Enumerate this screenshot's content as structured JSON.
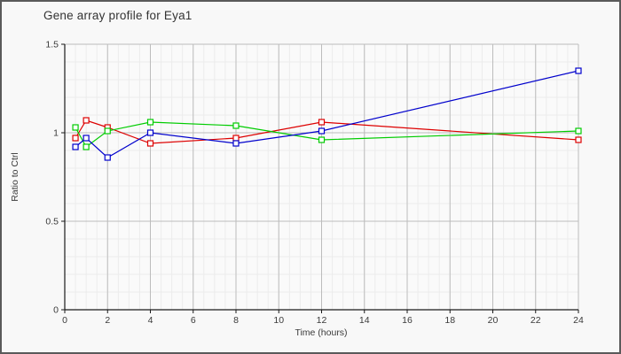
{
  "chart_data": {
    "type": "line",
    "title": "Gene array profile for Eya1",
    "xlabel": "Time (hours)",
    "ylabel": "Ratio to Ctrl",
    "xlim": [
      0,
      24
    ],
    "ylim": [
      0,
      1.5
    ],
    "x_major_ticks": [
      0,
      2,
      4,
      6,
      8,
      10,
      12,
      14,
      16,
      18,
      20,
      22,
      24
    ],
    "y_major_ticks": [
      0,
      0.5,
      1,
      1.5
    ],
    "x_minor_step": 0.5,
    "y_minor_step": 0.1,
    "grid": true,
    "legend": false,
    "marker": "open-square",
    "x": [
      0.5,
      1,
      2,
      4,
      8,
      12,
      24
    ],
    "series": [
      {
        "name": "series-red",
        "color": "#dd0000",
        "values": [
          0.97,
          1.07,
          1.03,
          0.94,
          0.97,
          1.06,
          0.96
        ]
      },
      {
        "name": "series-green",
        "color": "#00cc00",
        "values": [
          1.03,
          0.92,
          1.01,
          1.06,
          1.04,
          0.96,
          1.01
        ]
      },
      {
        "name": "series-blue",
        "color": "#0000cc",
        "values": [
          0.92,
          0.97,
          0.86,
          1.0,
          0.94,
          1.01,
          1.35
        ]
      }
    ]
  },
  "style": {
    "border_color": "#5a5a5a",
    "background": "#f8f8f8",
    "plot_background": "#fafafa",
    "grid_major_color": "#bcbcbc",
    "grid_minor_color": "#ececec",
    "axis_color": "#1a1a1a",
    "text_color": "#3a3a3a",
    "marker_fill": "#ffffff"
  }
}
